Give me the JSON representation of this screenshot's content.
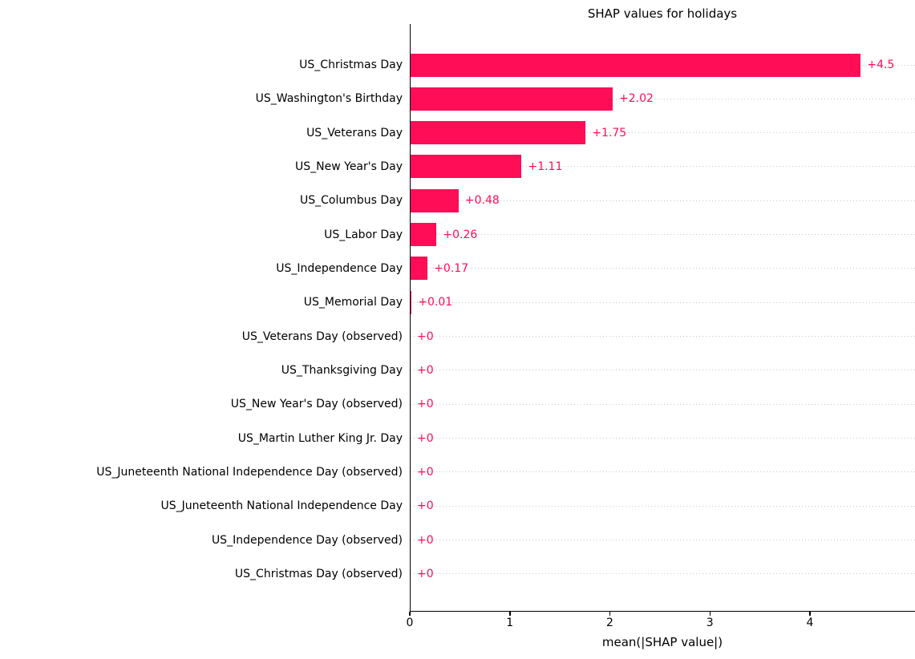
{
  "chart_data": {
    "type": "bar",
    "orientation": "horizontal",
    "title": "SHAP values for holidays",
    "xlabel": "mean(|SHAP value|)",
    "categories": [
      "US_Christmas Day",
      "US_Washington's Birthday",
      "US_Veterans Day",
      "US_New Year's Day",
      "US_Columbus Day",
      "US_Labor Day",
      "US_Independence Day",
      "US_Memorial Day",
      "US_Veterans Day (observed)",
      "US_Thanksgiving Day",
      "US_New Year's Day (observed)",
      "US_Martin Luther King Jr. Day",
      "US_Juneteenth National Independence Day (observed)",
      "US_Juneteenth National Independence Day",
      "US_Independence Day (observed)",
      "US_Christmas Day (observed)"
    ],
    "values": [
      4.5,
      2.02,
      1.75,
      1.11,
      0.48,
      0.26,
      0.17,
      0.01,
      0,
      0,
      0,
      0,
      0,
      0,
      0,
      0
    ],
    "value_labels": [
      "+4.5",
      "+2.02",
      "+1.75",
      "+1.11",
      "+0.48",
      "+0.26",
      "+0.17",
      "+0.01",
      "+0",
      "+0",
      "+0",
      "+0",
      "+0",
      "+0",
      "+0",
      "+0"
    ],
    "x_ticks": [
      0,
      1,
      2,
      3,
      4
    ],
    "xlim": [
      0,
      5.05
    ],
    "ylim_rows": 16,
    "grid": "horizontal-dotted",
    "legend": "none",
    "bar_color": "#ff0d57",
    "value_label_color": "#ff0d57",
    "axis_color": "#000000",
    "gridline_color": "#c9c9c9",
    "background_color": "#ffffff"
  }
}
